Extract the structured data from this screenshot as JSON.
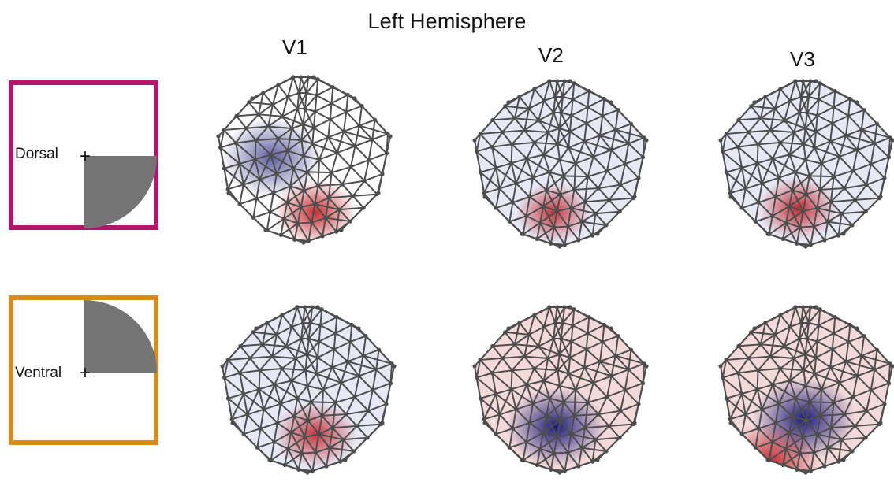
{
  "title": "Left Hemisphere",
  "columns": [
    "V1",
    "V2",
    "V3"
  ],
  "conditions": [
    {
      "label": "Dorsal",
      "frame_color": "#b5146b",
      "quadrant": "lower-right"
    },
    {
      "label": "Ventral",
      "frame_color": "#d98a1f",
      "quadrant": "upper-right"
    }
  ],
  "fixation_mark": "+",
  "colors": {
    "positive": "#c0161c",
    "negative": "#1a1a7a",
    "mesh": "#4d4d4d",
    "stimulus": "#747474"
  },
  "maps": [
    {
      "row": "Dorsal",
      "area": "V1",
      "tint": "none",
      "blobs": [
        {
          "sign": "negative",
          "strength": 0.7
        },
        {
          "sign": "positive",
          "strength": 0.9
        }
      ]
    },
    {
      "row": "Dorsal",
      "area": "V2",
      "tint": "negative-light",
      "blobs": [
        {
          "sign": "positive",
          "strength": 0.85
        }
      ]
    },
    {
      "row": "Dorsal",
      "area": "V3",
      "tint": "negative-light",
      "blobs": [
        {
          "sign": "positive",
          "strength": 0.9
        }
      ]
    },
    {
      "row": "Ventral",
      "area": "V1",
      "tint": "negative-light",
      "blobs": [
        {
          "sign": "positive",
          "strength": 0.85
        }
      ]
    },
    {
      "row": "Ventral",
      "area": "V2",
      "tint": "positive-light",
      "blobs": [
        {
          "sign": "negative",
          "strength": 1.0
        }
      ]
    },
    {
      "row": "Ventral",
      "area": "V3",
      "tint": "positive-light",
      "blobs": [
        {
          "sign": "negative",
          "strength": 1.0
        },
        {
          "sign": "positive",
          "strength": 0.9
        }
      ]
    }
  ]
}
